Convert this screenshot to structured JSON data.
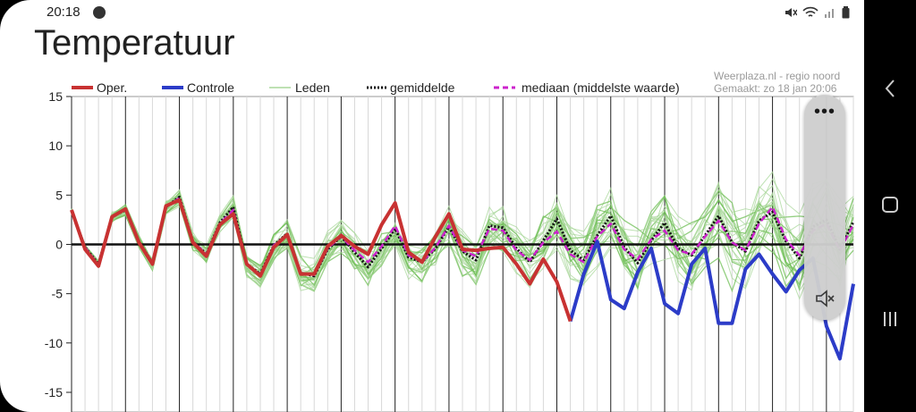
{
  "status": {
    "time": "20:18"
  },
  "page": {
    "title": "Temperatuur"
  },
  "chart_data": {
    "type": "line",
    "title": "",
    "xlabel": "",
    "ylabel": "",
    "ylim": [
      -17,
      15
    ],
    "yticks": [
      15,
      10,
      5,
      0,
      -5,
      -10,
      -15
    ],
    "legend": {
      "placement": "top",
      "items": [
        {
          "label": "Oper.",
          "color": "#c83232",
          "style": "solid"
        },
        {
          "label": "Controle",
          "color": "#2c3cc8",
          "style": "solid"
        },
        {
          "label": "Leden",
          "color": "#a8d79a",
          "style": "thin"
        },
        {
          "label": "gemiddelde",
          "color": "#111111",
          "style": "dotted"
        },
        {
          "label": "mediaan (middelste waarde)",
          "color": "#cc22cc",
          "style": "dashed"
        }
      ]
    },
    "source": {
      "line1": "Weerplaza.nl - regio noord",
      "line2": "Gemaakt: zo 18 jan 20:06"
    },
    "x": [
      0,
      1,
      2,
      3,
      4,
      5,
      6,
      7,
      8,
      9,
      10,
      11,
      12,
      13,
      14,
      15,
      16,
      17,
      18,
      19,
      20,
      21,
      22,
      23,
      24,
      25,
      26,
      27,
      28,
      29,
      30,
      31,
      32,
      33,
      34,
      35,
      36,
      37,
      38,
      39,
      40,
      41,
      42,
      43,
      44,
      45,
      46,
      47,
      48,
      49,
      50,
      51,
      52,
      53,
      54,
      55,
      56,
      57,
      58
    ],
    "series": [
      {
        "name": "Oper.",
        "values": [
          3.5,
          -0.5,
          -2.2,
          2.8,
          3.6,
          0.2,
          -2,
          3.9,
          4.5,
          0.2,
          -1.2,
          2,
          3.1,
          -2,
          -3.2,
          -0.3,
          1,
          -3,
          -3,
          -0.2,
          0.9,
          -0.2,
          -1,
          2,
          4.2,
          -0.8,
          -1.8,
          0.8,
          3.1,
          -0.5,
          -0.6,
          -0.4,
          -0.3,
          -2,
          -4,
          -1.5,
          -3.8,
          -7.8,
          null,
          null,
          null,
          null,
          null,
          null,
          null,
          null,
          null,
          null,
          null,
          null,
          null,
          null,
          null,
          null,
          null,
          null,
          null,
          null,
          null
        ]
      },
      {
        "name": "Controle",
        "values": [
          null,
          null,
          null,
          null,
          null,
          null,
          null,
          null,
          null,
          null,
          null,
          null,
          null,
          null,
          null,
          null,
          null,
          null,
          null,
          null,
          null,
          null,
          null,
          null,
          null,
          null,
          null,
          null,
          null,
          null,
          null,
          null,
          null,
          null,
          null,
          null,
          null,
          -7.8,
          -3,
          0.3,
          -5.6,
          -6.5,
          -2.8,
          -0.4,
          -6,
          -7,
          -2,
          -0.4,
          -8,
          -8,
          -2.5,
          -1,
          -3,
          -4.8,
          -2.6,
          -1.4,
          -8.3,
          -11.6,
          -4
        ]
      },
      {
        "name": "gemiddelde",
        "values": [
          3.4,
          -0.3,
          -2,
          2.8,
          3.5,
          0.3,
          -1.9,
          3.8,
          4.8,
          0.3,
          -1,
          2.2,
          3.8,
          -2,
          -3,
          -0.1,
          1.1,
          -2.9,
          -3.2,
          -0.5,
          0.8,
          -0.8,
          -2.3,
          -0.4,
          1.6,
          -1.3,
          -1.8,
          -0.4,
          1.8,
          -0.7,
          -1.6,
          1.9,
          1.7,
          -0.4,
          -1.8,
          0.4,
          2.6,
          -0.6,
          -1.6,
          0.9,
          2.9,
          -0.3,
          -1.9,
          0.4,
          2.2,
          -0.4,
          -1.1,
          0.9,
          2.9,
          0.2,
          -0.7,
          2.4,
          3.3,
          0.3,
          -1.4,
          1.8,
          2.5,
          -0.5,
          2.3
        ]
      },
      {
        "name": "mediaan (middelste waarde)",
        "values": [
          3.5,
          -0.3,
          -2.1,
          2.8,
          3.6,
          0.3,
          -1.9,
          3.8,
          4.7,
          0.3,
          -1,
          2.1,
          3.5,
          -2,
          -3.1,
          -0.1,
          1,
          -2.9,
          -3.1,
          -0.4,
          0.8,
          -0.6,
          -1.8,
          -0.2,
          1.9,
          -1.1,
          -1.8,
          -0.3,
          1.9,
          -0.6,
          -1.2,
          1.6,
          1.4,
          -0.6,
          -1.6,
          0.2,
          1.3,
          -1,
          -1.8,
          0.8,
          2.1,
          -0.5,
          -1.5,
          0.5,
          1.4,
          -0.6,
          -1,
          0.8,
          2.4,
          0.2,
          -0.6,
          2.1,
          3.8,
          0.5,
          -1.1,
          1.4,
          2.1,
          -0.6,
          2
        ]
      }
    ]
  },
  "colors": {
    "oper": "#c83232",
    "controle": "#2c3cc8",
    "leden": "#86c96f",
    "gemiddelde": "#111111",
    "mediaan": "#cc22cc"
  }
}
